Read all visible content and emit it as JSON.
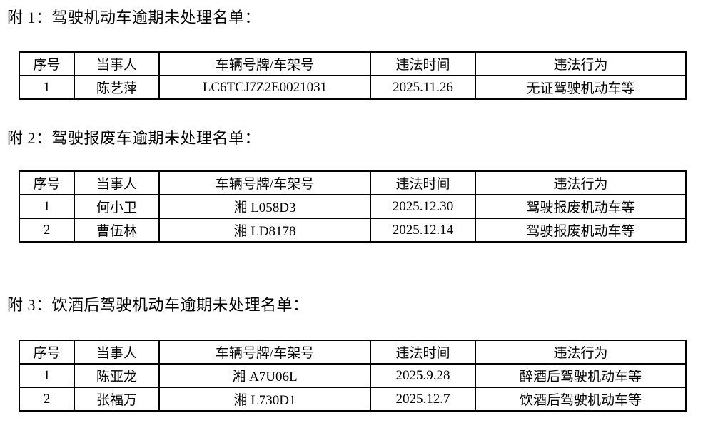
{
  "colors": {
    "background": "#ffffff",
    "text": "#000000",
    "border": "#000000"
  },
  "sections": [
    {
      "heading": "附 1：驾驶机动车逾期未处理名单：",
      "columns": [
        "序号",
        "当事人",
        "车辆号牌/车架号",
        "违法时间",
        "违法行为"
      ],
      "rows": [
        [
          "1",
          "陈艺萍",
          "LC6TCJ7Z2E0021031",
          "2025.11.26",
          "无证驾驶机动车等"
        ]
      ]
    },
    {
      "heading": "附 2：驾驶报废车逾期未处理名单：",
      "columns": [
        "序号",
        "当事人",
        "车辆号牌/车架号",
        "违法时间",
        "违法行为"
      ],
      "rows": [
        [
          "1",
          "何小卫",
          "湘 L058D3",
          "2025.12.30",
          "驾驶报废机动车等"
        ],
        [
          "2",
          "曹伍林",
          "湘 LD8178",
          "2025.12.14",
          "驾驶报废机动车等"
        ]
      ]
    },
    {
      "heading": "附 3：饮酒后驾驶机动车逾期未处理名单：",
      "columns": [
        "序号",
        "当事人",
        "车辆号牌/车架号",
        "违法时间",
        "违法行为"
      ],
      "rows": [
        [
          "1",
          "陈亚龙",
          "湘 A7U06L",
          "2025.9.28",
          "醉酒后驾驶机动车等"
        ],
        [
          "2",
          "张福万",
          "湘 L730D1",
          "2025.12.7",
          "饮酒后驾驶机动车等"
        ]
      ]
    }
  ]
}
